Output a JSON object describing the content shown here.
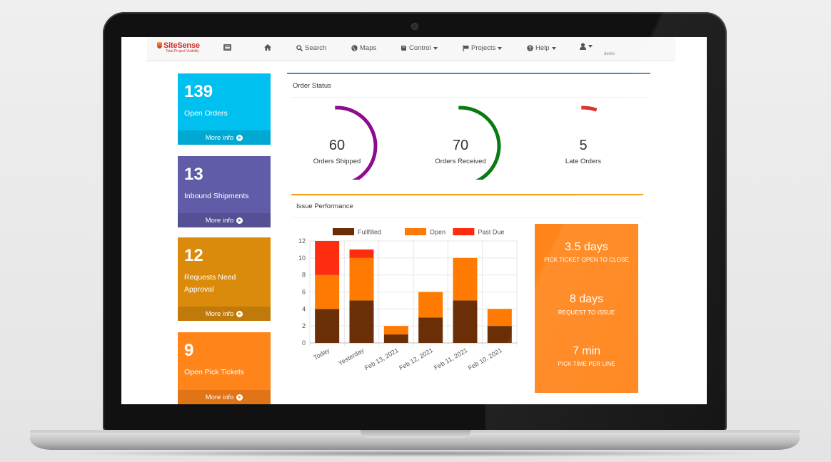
{
  "navbar": {
    "brand": "SiteSense",
    "tagline": "Total Project Visibility",
    "search": "Search",
    "maps": "Maps",
    "control": "Control",
    "projects": "Projects",
    "help": "Help",
    "user": "demo"
  },
  "tiles": [
    {
      "value": "139",
      "label": "Open Orders",
      "more": "More info",
      "color": "#00c0ef"
    },
    {
      "value": "13",
      "label": "Inbound Shipments",
      "more": "More info",
      "color": "#605ca8"
    },
    {
      "value": "12",
      "label": "Requests Need Approval",
      "more": "More info",
      "color": "#db8b0b"
    },
    {
      "value": "9",
      "label": "Open Pick Tickets",
      "more": "More info",
      "color": "#ff851b"
    }
  ],
  "order_status": {
    "title": "Order Status",
    "gauges": [
      {
        "value": "60",
        "label": "Orders Shipped",
        "color": "#8e0b8e",
        "fraction": 0.6
      },
      {
        "value": "70",
        "label": "Orders Received",
        "color": "#0a7a12",
        "fraction": 0.7
      },
      {
        "value": "5",
        "label": "Late Orders",
        "color": "#dd3333",
        "fraction": 0.08
      }
    ]
  },
  "issue_performance": {
    "title": "Issue Performance",
    "kpis": [
      {
        "value": "3.5 days",
        "caption": "PICK TICKET OPEN TO CLOSE"
      },
      {
        "value": "8 days",
        "caption": "REQUEST TO ISSUE"
      },
      {
        "value": "7 min",
        "caption": "PICK TIME PER LINE"
      }
    ]
  },
  "chart_data": {
    "type": "bar",
    "stacked": true,
    "categories": [
      "Today",
      "Yesterday",
      "Feb 13, 2021",
      "Feb 12, 2021",
      "Feb 11, 2021",
      "Feb 10, 2021"
    ],
    "series": [
      {
        "name": "Fullfilled",
        "color": "#6b2f07",
        "values": [
          4,
          5,
          1,
          3,
          5,
          2
        ]
      },
      {
        "name": "Open",
        "color": "#ff7a00",
        "values": [
          4,
          5,
          1,
          3,
          5,
          2
        ]
      },
      {
        "name": "Past Due",
        "color": "#ff2d10",
        "values": [
          4,
          1,
          0,
          0,
          0,
          0
        ]
      }
    ],
    "ylim": [
      0,
      12
    ],
    "yticks": [
      "0",
      "2",
      "4",
      "6",
      "8",
      "10",
      "12"
    ],
    "legend_position": "top",
    "grid": true
  }
}
